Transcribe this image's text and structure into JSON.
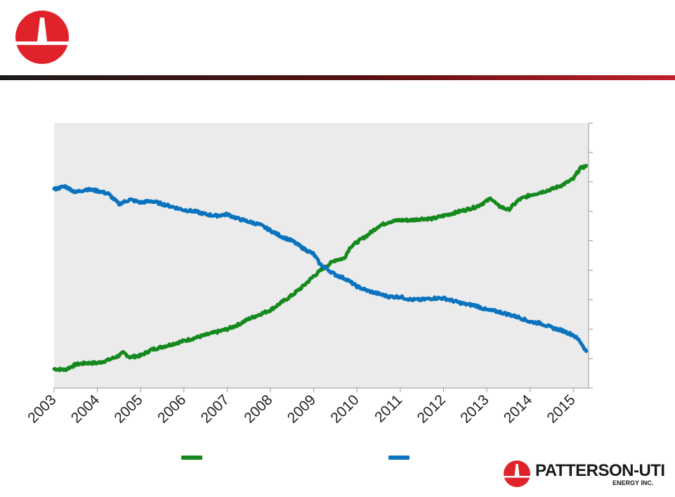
{
  "colors": {
    "accent_red": "#e0232b",
    "green": "#16891e",
    "blue": "#0b73be",
    "plot_bg": "#ebebeb"
  },
  "icons": {
    "top_logo": "patterson-uti-logo-icon",
    "brand_logo": "patterson-uti-logo-icon"
  },
  "brand": {
    "name": "PATTERSON-UTI",
    "subtitle": "ENERGY INC."
  },
  "chart_data": {
    "type": "line",
    "xlim": [
      2003,
      2015.3
    ],
    "ylim": [
      0,
      9
    ],
    "grid": false,
    "legend": "bottom",
    "x_ticks": [
      "2003",
      "2004",
      "2005",
      "2006",
      "2007",
      "2008",
      "2009",
      "2010",
      "2011",
      "2012",
      "2013",
      "2014",
      "2015"
    ],
    "series": [
      {
        "color": "#16891e",
        "x": [
          2003.0,
          2003.25,
          2003.5,
          2003.75,
          2004.0,
          2004.25,
          2004.5,
          2004.6,
          2004.75,
          2005.0,
          2005.25,
          2005.5,
          2005.75,
          2006.0,
          2006.25,
          2006.5,
          2006.75,
          2007.0,
          2007.25,
          2007.5,
          2007.75,
          2008.0,
          2008.25,
          2008.5,
          2008.75,
          2009.0,
          2009.25,
          2009.5,
          2009.7,
          2009.85,
          2010.0,
          2010.25,
          2010.5,
          2010.75,
          2011.0,
          2011.25,
          2011.5,
          2011.75,
          2012.0,
          2012.25,
          2012.5,
          2012.75,
          2013.0,
          2013.1,
          2013.25,
          2013.5,
          2013.75,
          2014.0,
          2014.25,
          2014.5,
          2014.75,
          2015.0,
          2015.15,
          2015.3
        ],
        "values": [
          0.65,
          0.62,
          0.8,
          0.85,
          0.85,
          0.95,
          1.1,
          1.2,
          1.05,
          1.1,
          1.3,
          1.4,
          1.5,
          1.6,
          1.7,
          1.8,
          1.9,
          2.0,
          2.15,
          2.35,
          2.5,
          2.65,
          2.9,
          3.15,
          3.45,
          3.8,
          4.1,
          4.35,
          4.4,
          4.8,
          4.95,
          5.2,
          5.5,
          5.65,
          5.7,
          5.7,
          5.75,
          5.75,
          5.85,
          5.95,
          6.05,
          6.15,
          6.35,
          6.45,
          6.2,
          6.05,
          6.4,
          6.55,
          6.65,
          6.75,
          6.9,
          7.1,
          7.45,
          7.55
        ]
      },
      {
        "color": "#0b73be",
        "x": [
          2003.0,
          2003.25,
          2003.5,
          2003.75,
          2004.0,
          2004.25,
          2004.5,
          2004.75,
          2005.0,
          2005.25,
          2005.5,
          2005.75,
          2006.0,
          2006.25,
          2006.5,
          2006.75,
          2007.0,
          2007.25,
          2007.5,
          2007.75,
          2008.0,
          2008.25,
          2008.5,
          2008.75,
          2009.0,
          2009.15,
          2009.3,
          2009.5,
          2009.75,
          2010.0,
          2010.25,
          2010.5,
          2010.75,
          2011.0,
          2011.25,
          2011.5,
          2011.75,
          2012.0,
          2012.25,
          2012.5,
          2012.75,
          2013.0,
          2013.25,
          2013.5,
          2013.75,
          2014.0,
          2014.25,
          2014.5,
          2014.75,
          2015.0,
          2015.15,
          2015.3
        ],
        "values": [
          6.75,
          6.85,
          6.65,
          6.75,
          6.7,
          6.6,
          6.25,
          6.4,
          6.3,
          6.35,
          6.25,
          6.15,
          6.05,
          6.0,
          5.9,
          5.85,
          5.9,
          5.75,
          5.65,
          5.55,
          5.35,
          5.15,
          5.0,
          4.75,
          4.55,
          4.2,
          4.05,
          3.85,
          3.7,
          3.45,
          3.3,
          3.2,
          3.1,
          3.1,
          3.0,
          3.0,
          3.05,
          3.05,
          2.95,
          2.85,
          2.8,
          2.65,
          2.6,
          2.5,
          2.4,
          2.25,
          2.2,
          2.05,
          1.95,
          1.8,
          1.6,
          1.25
        ]
      }
    ]
  }
}
